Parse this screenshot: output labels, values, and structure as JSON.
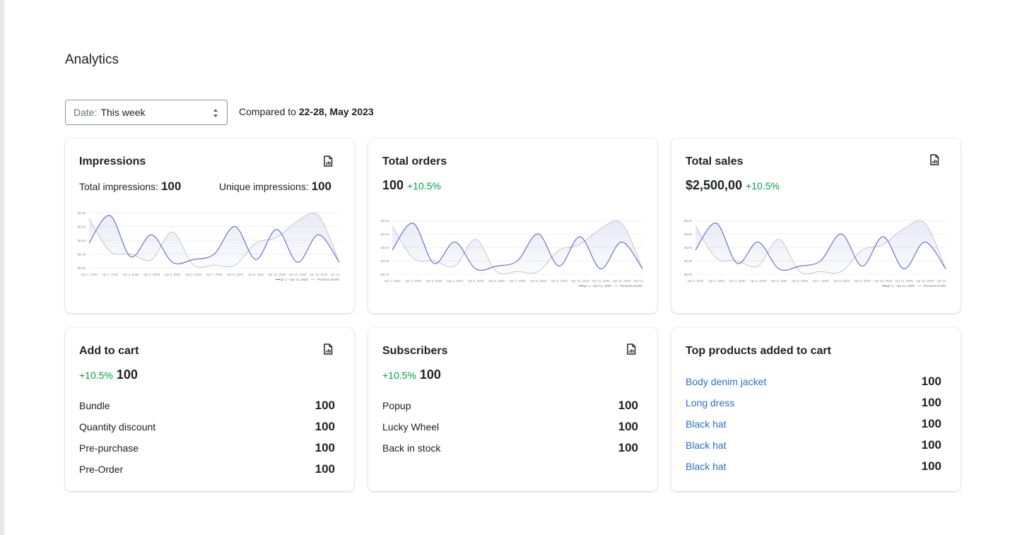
{
  "page": {
    "title": "Analytics"
  },
  "filter": {
    "date_label": "Date:",
    "date_value": "This week",
    "compared_prefix": "Compared to",
    "compared_range": "22-28, May 2023"
  },
  "colors": {
    "current_series": "#5c6ac4",
    "previous_series": "#c4c6cc",
    "positive_delta": "#00a047",
    "link": "#2c6ecb"
  },
  "cards": {
    "impressions": {
      "title": "Impressions",
      "total_label": "Total impressions:",
      "total_value": "100",
      "unique_label": "Unique impressions:",
      "unique_value": "100",
      "icon": "export-report-icon"
    },
    "orders": {
      "title": "Total orders",
      "value": "100",
      "delta": "+10.5%"
    },
    "sales": {
      "title": "Total sales",
      "value": "$2,500,00",
      "delta": "+10.5%",
      "icon": "export-report-icon"
    },
    "add_to_cart": {
      "title": "Add to cart",
      "delta": "+10.5%",
      "value": "100",
      "icon": "export-report-icon",
      "rows": [
        {
          "label": "Bundle",
          "value": "100"
        },
        {
          "label": "Quantity discount",
          "value": "100"
        },
        {
          "label": "Pre-purchase",
          "value": "100"
        },
        {
          "label": "Pre-Order",
          "value": "100"
        }
      ]
    },
    "subscribers": {
      "title": "Subscribers",
      "delta": "+10.5%",
      "value": "100",
      "icon": "export-report-icon",
      "rows": [
        {
          "label": "Popup",
          "value": "100"
        },
        {
          "label": "Lucky Wheel",
          "value": "100"
        },
        {
          "label": "Back in stock",
          "value": "100"
        }
      ]
    },
    "top_products": {
      "title": "Top products added to cart",
      "rows": [
        {
          "label": "Body denim jacket",
          "value": "100"
        },
        {
          "label": "Long dress",
          "value": "100"
        },
        {
          "label": "Black hat",
          "value": "100"
        },
        {
          "label": "Black hat",
          "value": "100"
        },
        {
          "label": "Black hat",
          "value": "100"
        }
      ]
    }
  },
  "chart_data": [
    {
      "type": "line",
      "ylabels": [
        "$0.00",
        "$0.00",
        "$0.00",
        "$0.00",
        "$0.00"
      ],
      "x": [
        "Apr 1, 2020",
        "Apr 2, 2020",
        "Apr 3, 2020",
        "Apr 4, 2020",
        "Apr 5, 2020",
        "Apr 6, 2020",
        "Apr 7, 2020",
        "Apr 8, 2020",
        "Apr 9, 2020",
        "Apr 10, 2020",
        "Apr 11, 2020",
        "Apr 12, 2020",
        "Apr 13, 2020"
      ],
      "series": [
        {
          "name": "Apr 1 – Apr 14, 2020",
          "values": [
            0.45,
            0.95,
            0.2,
            0.6,
            0.1,
            0.15,
            0.25,
            0.75,
            0.15,
            0.7,
            0.1,
            0.6,
            0.1
          ]
        },
        {
          "name": "Previous month",
          "values": [
            0.9,
            0.3,
            0.25,
            0.15,
            0.65,
            0.05,
            0.05,
            0.05,
            0.45,
            0.55,
            0.85,
            0.95,
            0.1
          ]
        }
      ],
      "legend": "bottom-right"
    },
    {
      "type": "line",
      "ylabels": [
        "$0.00",
        "$0.00",
        "$0.00",
        "$0.00",
        "$0.00"
      ],
      "x": [
        "Apr 1, 2020",
        "Apr 2, 2020",
        "Apr 3, 2020",
        "Apr 4, 2020",
        "Apr 5, 2020",
        "Apr 6, 2020",
        "Apr 7, 2020",
        "Apr 8, 2020",
        "Apr 9, 2020",
        "Apr 10, 2020",
        "Apr 11, 2020",
        "Apr 12, 2020",
        "Apr 13, 2020"
      ],
      "series": [
        {
          "name": "Apr 1 – Apr 14, 2020",
          "values": [
            0.45,
            0.95,
            0.2,
            0.6,
            0.1,
            0.15,
            0.25,
            0.75,
            0.15,
            0.7,
            0.1,
            0.6,
            0.1
          ]
        },
        {
          "name": "Previous month",
          "values": [
            0.9,
            0.3,
            0.25,
            0.15,
            0.65,
            0.05,
            0.05,
            0.05,
            0.45,
            0.55,
            0.85,
            0.95,
            0.1
          ]
        }
      ],
      "legend": "bottom-right"
    },
    {
      "type": "line",
      "ylabels": [
        "$0.00",
        "$0.00",
        "$0.00",
        "$0.00",
        "$0.00"
      ],
      "x": [
        "Apr 1, 2020",
        "Apr 2, 2020",
        "Apr 3, 2020",
        "Apr 4, 2020",
        "Apr 5, 2020",
        "Apr 6, 2020",
        "Apr 7, 2020",
        "Apr 8, 2020",
        "Apr 9, 2020",
        "Apr 10, 2020",
        "Apr 11, 2020",
        "Apr 12, 2020",
        "Apr 13, 2020"
      ],
      "series": [
        {
          "name": "Apr 1 – Apr 14, 2020",
          "values": [
            0.45,
            0.95,
            0.2,
            0.6,
            0.1,
            0.15,
            0.25,
            0.75,
            0.15,
            0.7,
            0.1,
            0.6,
            0.1
          ]
        },
        {
          "name": "Previous month",
          "values": [
            0.9,
            0.3,
            0.25,
            0.15,
            0.65,
            0.05,
            0.05,
            0.05,
            0.45,
            0.55,
            0.85,
            0.95,
            0.1
          ]
        }
      ],
      "legend": "bottom-right"
    }
  ]
}
